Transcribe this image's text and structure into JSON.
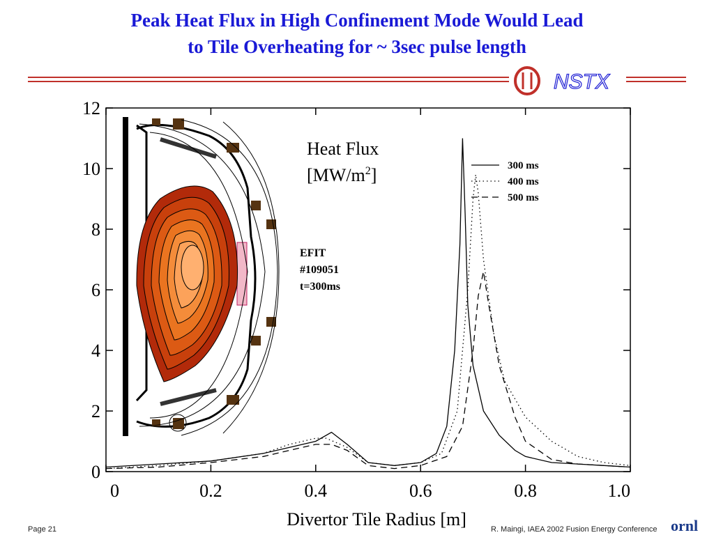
{
  "slide": {
    "title_line1": "Peak Heat Flux in High Confinement Mode Would Lead",
    "title_line2": "to Tile Overheating for ~ 3sec pulse length",
    "page_label": "Page 21",
    "credit": "R. Maingi, IAEA 2002 Fusion Energy Conference",
    "logos": {
      "right_header": "NSTX",
      "footer": "ornl"
    }
  },
  "colors": {
    "title": "#1a1ad6",
    "rule": "#c0302a",
    "logo_blue": "#2a2ad6",
    "logo_red": "#c0302a",
    "plasma_outer": "#b22a0a",
    "plasma_inner": "#ffb070"
  },
  "chart_data": {
    "type": "line",
    "title": "Heat Flux [MW/m2]",
    "title_parts": {
      "line1": "Heat Flux",
      "line2_prefix": "[MW/m",
      "superscript": "2",
      "line2_suffix": "]"
    },
    "xlabel": "Divertor Tile Radius [m]",
    "ylabel": "",
    "xlim": [
      0,
      1.0
    ],
    "ylim": [
      0,
      12
    ],
    "x_ticks": [
      "0",
      "0.2",
      "0.4",
      "0.6",
      "0.8",
      "1.0"
    ],
    "x_tick_values": [
      0,
      0.2,
      0.4,
      0.6,
      0.8,
      1.0
    ],
    "y_ticks": [
      "0",
      "2",
      "4",
      "6",
      "8",
      "10",
      "12"
    ],
    "y_tick_values": [
      0,
      2,
      4,
      6,
      8,
      10,
      12
    ],
    "legend_position": "top-right",
    "annotation": {
      "line1": "EFIT",
      "line2": "#109051",
      "line3": "t=300ms"
    },
    "inset": "EFIT equilibrium cross-section with colored plasma flux surfaces",
    "series": [
      {
        "name": "300 ms",
        "style": "solid",
        "x": [
          0.0,
          0.1,
          0.2,
          0.3,
          0.35,
          0.4,
          0.43,
          0.46,
          0.5,
          0.55,
          0.6,
          0.63,
          0.65,
          0.665,
          0.675,
          0.68,
          0.685,
          0.69,
          0.7,
          0.72,
          0.75,
          0.78,
          0.8,
          0.85,
          0.9,
          0.95,
          1.0
        ],
        "y": [
          0.15,
          0.25,
          0.35,
          0.6,
          0.8,
          1.0,
          1.3,
          0.9,
          0.3,
          0.2,
          0.3,
          0.6,
          1.5,
          4.0,
          7.5,
          11.0,
          8.5,
          5.5,
          3.5,
          2.0,
          1.2,
          0.7,
          0.5,
          0.3,
          0.25,
          0.2,
          0.15
        ]
      },
      {
        "name": "400 ms",
        "style": "dotted",
        "x": [
          0.0,
          0.1,
          0.2,
          0.3,
          0.35,
          0.4,
          0.42,
          0.46,
          0.5,
          0.55,
          0.6,
          0.64,
          0.67,
          0.69,
          0.7,
          0.705,
          0.71,
          0.72,
          0.74,
          0.76,
          0.8,
          0.85,
          0.9,
          0.95,
          1.0
        ],
        "y": [
          0.1,
          0.2,
          0.35,
          0.6,
          0.9,
          1.1,
          1.1,
          0.8,
          0.3,
          0.2,
          0.3,
          0.6,
          2.0,
          6.0,
          9.0,
          9.8,
          9.2,
          7.0,
          4.5,
          3.0,
          1.8,
          1.0,
          0.5,
          0.3,
          0.2
        ]
      },
      {
        "name": "500 ms",
        "style": "dashed",
        "x": [
          0.0,
          0.1,
          0.2,
          0.3,
          0.35,
          0.4,
          0.43,
          0.46,
          0.5,
          0.55,
          0.6,
          0.65,
          0.68,
          0.7,
          0.71,
          0.72,
          0.73,
          0.75,
          0.78,
          0.8,
          0.85,
          0.9,
          0.95,
          1.0
        ],
        "y": [
          0.1,
          0.15,
          0.3,
          0.5,
          0.7,
          0.9,
          0.9,
          0.7,
          0.2,
          0.1,
          0.2,
          0.5,
          1.5,
          4.0,
          5.8,
          6.6,
          5.5,
          3.5,
          1.8,
          1.0,
          0.4,
          0.25,
          0.2,
          0.15
        ]
      }
    ]
  }
}
